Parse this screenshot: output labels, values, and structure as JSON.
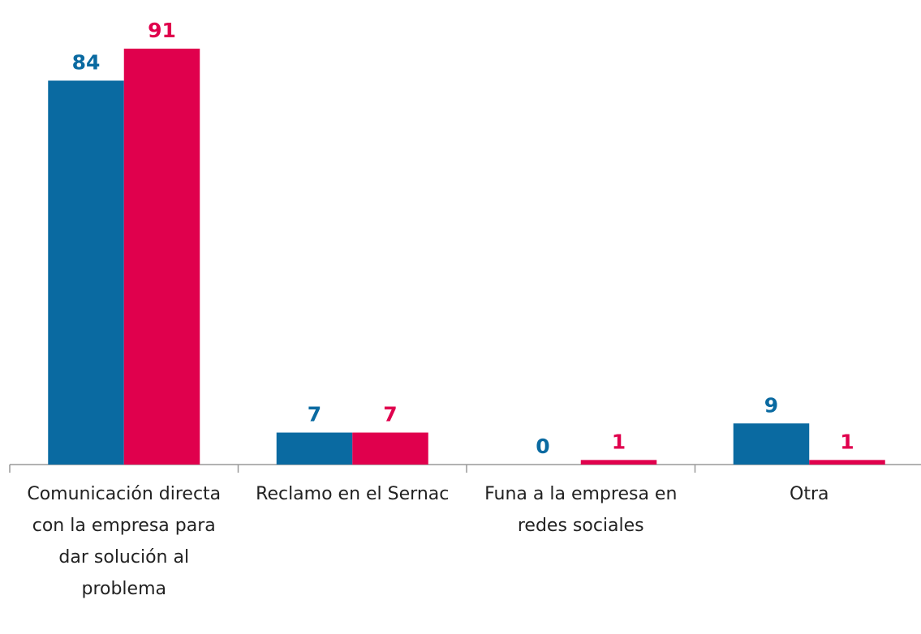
{
  "chart_data": {
    "type": "bar",
    "categories": [
      "Comunicación directa con la empresa para dar solución al problema",
      "Reclamo en el Sernac",
      "Funa a la empresa en redes sociales",
      "Otra"
    ],
    "series": [
      {
        "color": "#0a6aa1",
        "values": [
          84,
          7,
          0,
          9
        ]
      },
      {
        "color": "#e0004d",
        "values": [
          91,
          7,
          1,
          1
        ]
      }
    ]
  }
}
